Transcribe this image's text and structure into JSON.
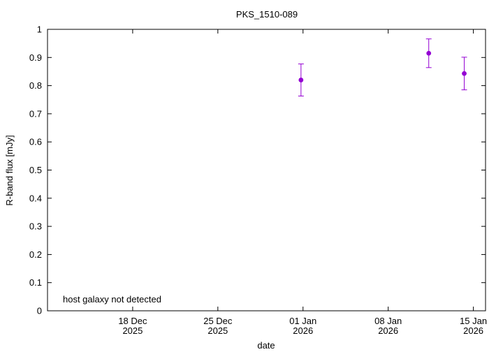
{
  "chart_data": {
    "type": "scatter",
    "title": "PKS_1510-089",
    "xlabel": "date",
    "ylabel": "R-band flux [mJy]",
    "annotation": "host galaxy not detected",
    "xlim": [
      "2025-12-11",
      "2026-01-16"
    ],
    "ylim": [
      0,
      1
    ],
    "grid": false,
    "legend": "none",
    "point_color": "#9400d3",
    "x_ticks": [
      {
        "date": "2025-12-18",
        "line1": "18 Dec",
        "line2": "2025"
      },
      {
        "date": "2025-12-25",
        "line1": "25 Dec",
        "line2": "2025"
      },
      {
        "date": "2026-01-01",
        "line1": "01 Jan",
        "line2": "2026"
      },
      {
        "date": "2026-01-08",
        "line1": "08 Jan",
        "line2": "2026"
      },
      {
        "date": "2026-01-15",
        "line1": "15 Jan",
        "line2": "2026"
      }
    ],
    "y_ticks": [
      {
        "value": 0,
        "label": "0"
      },
      {
        "value": 0.1,
        "label": "0.1"
      },
      {
        "value": 0.2,
        "label": "0.2"
      },
      {
        "value": 0.3,
        "label": "0.3"
      },
      {
        "value": 0.4,
        "label": "0.4"
      },
      {
        "value": 0.5,
        "label": "0.5"
      },
      {
        "value": 0.6,
        "label": "0.6"
      },
      {
        "value": 0.7,
        "label": "0.7"
      },
      {
        "value": 0.8,
        "label": "0.8"
      },
      {
        "value": 0.9,
        "label": "0.9"
      },
      {
        "value": 1,
        "label": "1"
      }
    ],
    "points": [
      {
        "date": "2025-12-31T20:00",
        "y": 0.82,
        "yerr": 0.057
      },
      {
        "date": "2026-01-11T08:00",
        "y": 0.915,
        "yerr": 0.051
      },
      {
        "date": "2026-01-14T06:00",
        "y": 0.843,
        "yerr": 0.058
      }
    ]
  }
}
